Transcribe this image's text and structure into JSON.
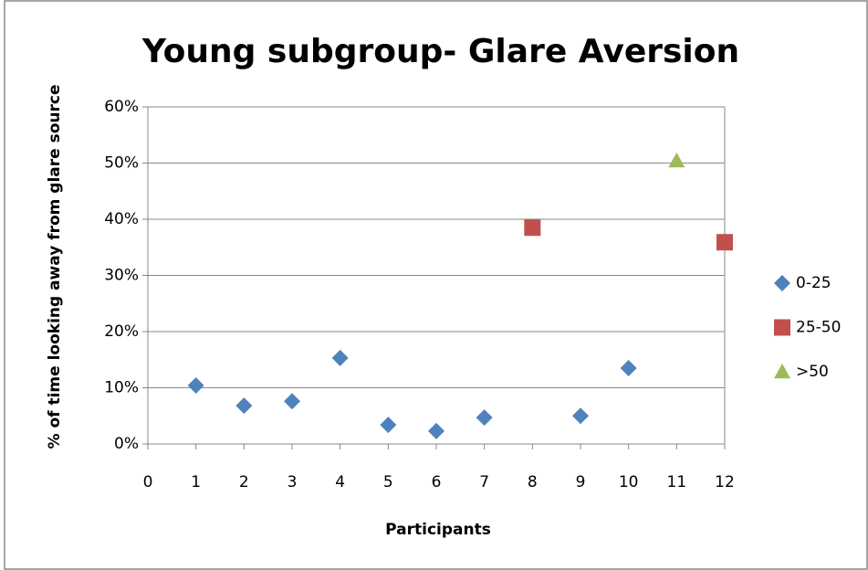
{
  "chart_data": {
    "type": "scatter",
    "title": "Young subgroup- Glare Aversion",
    "x_label": "Participants",
    "y_label": "% of time looking away from glare source",
    "xlim": [
      0,
      12
    ],
    "xticks": [
      0,
      1,
      2,
      3,
      4,
      5,
      6,
      7,
      8,
      9,
      10,
      11,
      12
    ],
    "ylim": [
      0,
      60
    ],
    "yticks": [
      {
        "value": 0,
        "label": "0%"
      },
      {
        "value": 10,
        "label": "10%"
      },
      {
        "value": 20,
        "label": "20%"
      },
      {
        "value": 30,
        "label": "30%"
      },
      {
        "value": 40,
        "label": "40%"
      },
      {
        "value": 50,
        "label": "50%"
      },
      {
        "value": 60,
        "label": "60%"
      }
    ],
    "grid": true,
    "legend": "right",
    "series": [
      {
        "name": "0-25",
        "color": "#4f81bd",
        "marker": "diamond",
        "x": [
          1,
          2,
          3,
          4,
          5,
          6,
          7,
          9,
          10
        ],
        "values": [
          10.4,
          6.8,
          7.6,
          15.3,
          3.4,
          2.3,
          4.7,
          5.0,
          13.5
        ]
      },
      {
        "name": "25-50",
        "color": "#c0504d",
        "marker": "square",
        "x": [
          8,
          12
        ],
        "values": [
          38.5,
          35.9
        ]
      },
      {
        "name": ">50",
        "color": "#9bbb59",
        "marker": "triangle",
        "x": [
          11
        ],
        "values": [
          50.4
        ]
      }
    ]
  }
}
